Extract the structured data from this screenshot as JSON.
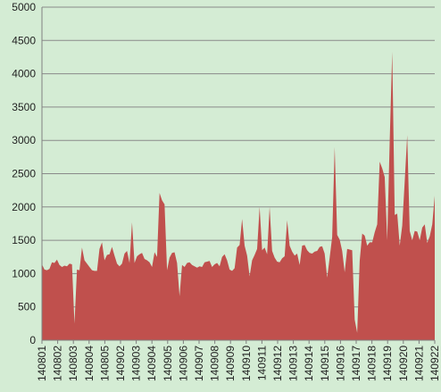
{
  "chart_data": {
    "type": "area",
    "title": "",
    "xlabel": "",
    "ylabel": "",
    "ylim": [
      0,
      5000
    ],
    "yticks": [
      0,
      500,
      1000,
      1500,
      2000,
      2500,
      3000,
      3500,
      4000,
      4500,
      5000
    ],
    "grid": "horizontal",
    "legend": "none",
    "colors": {
      "background": "#d4ecd4",
      "area": "#c0504d",
      "gridline": "#8a8a8a",
      "axis": "#7f7f7f"
    },
    "x_tick_labels": [
      "140801",
      "140802",
      "140803",
      "140804",
      "140805",
      "140902",
      "140903",
      "140904",
      "140905",
      "140906",
      "140907",
      "140908",
      "140909",
      "140910",
      "140911",
      "140912",
      "140913",
      "140914",
      "140915",
      "140916",
      "140917",
      "140918",
      "140919",
      "140920",
      "140921",
      "140922"
    ],
    "series": [
      {
        "values": [
          1140,
          1060,
          1050,
          1070,
          1170,
          1160,
          1210,
          1130,
          1100,
          1120,
          1110,
          1150,
          1140,
          250,
          1060,
          1050,
          1390,
          1200,
          1150,
          1100,
          1050,
          1040,
          1040,
          1370,
          1470,
          1200,
          1280,
          1290,
          1400,
          1270,
          1150,
          1110,
          1150,
          1300,
          1340,
          1160,
          1770,
          1160,
          1260,
          1290,
          1310,
          1220,
          1200,
          1170,
          1100,
          1320,
          1250,
          2210,
          2100,
          2040,
          1050,
          1240,
          1310,
          1320,
          1160,
          660,
          1130,
          1100,
          1160,
          1170,
          1130,
          1110,
          1090,
          1110,
          1100,
          1170,
          1180,
          1190,
          1100,
          1140,
          1160,
          1110,
          1250,
          1290,
          1200,
          1060,
          1040,
          1080,
          1390,
          1430,
          1820,
          1420,
          1270,
          960,
          1200,
          1280,
          1370,
          2000,
          1350,
          1390,
          1290,
          2000,
          1340,
          1240,
          1180,
          1170,
          1230,
          1260,
          1800,
          1420,
          1330,
          1270,
          1300,
          1130,
          1420,
          1430,
          1350,
          1310,
          1300,
          1330,
          1340,
          1400,
          1410,
          1300,
          940,
          1240,
          1550,
          2900,
          1580,
          1510,
          1340,
          1020,
          1370,
          1360,
          1350,
          310,
          110,
          1190,
          1600,
          1570,
          1420,
          1470,
          1470,
          1620,
          1740,
          2680,
          2580,
          2450,
          1500,
          2990,
          4330,
          1880,
          1900,
          1420,
          1720,
          2390,
          3080,
          1640,
          1500,
          1640,
          1630,
          1500,
          1690,
          1740,
          1460,
          1560,
          1740,
          2170
        ]
      }
    ]
  }
}
